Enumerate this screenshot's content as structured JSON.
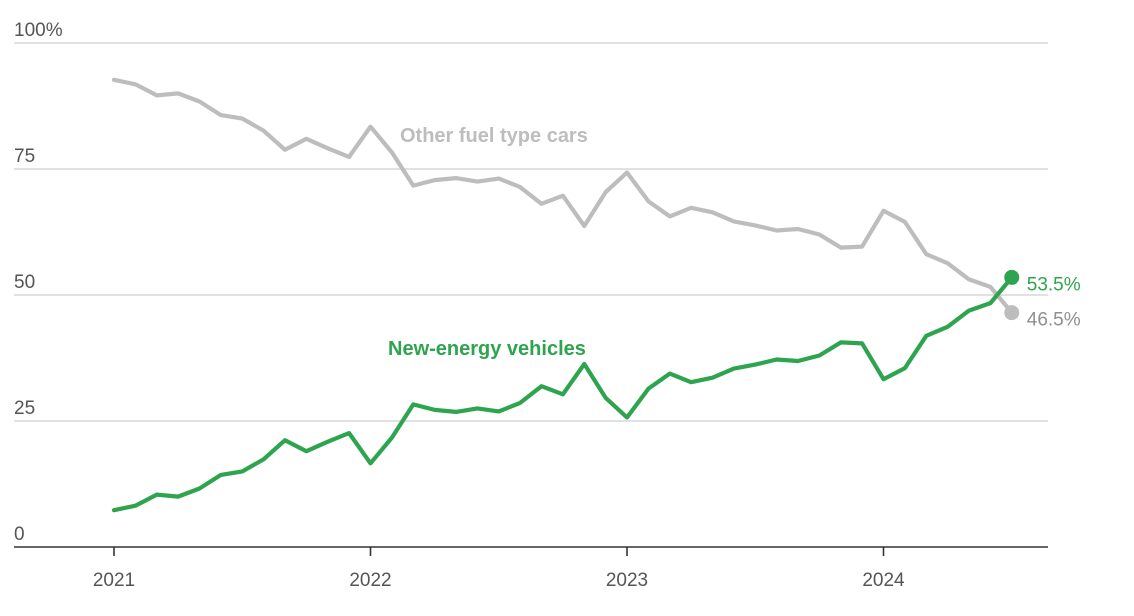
{
  "chart_data": {
    "type": "line",
    "y_unit_label": "100%",
    "yticks": [
      {
        "value": 100,
        "label": "100%"
      },
      {
        "value": 75,
        "label": "75"
      },
      {
        "value": 50,
        "label": "50"
      },
      {
        "value": 25,
        "label": "25"
      },
      {
        "value": 0,
        "label": "0"
      }
    ],
    "ylim": [
      0,
      100
    ],
    "xticks": [
      {
        "value": 0,
        "label": "2021"
      },
      {
        "value": 12,
        "label": "2022"
      },
      {
        "value": 24,
        "label": "2023"
      },
      {
        "value": 36,
        "label": "2024"
      }
    ],
    "x_start": "2021-01",
    "x_end": "2024-07",
    "grid": true,
    "series": [
      {
        "name": "New-energy vehicles",
        "color": "#2ea44f",
        "end_label": "53.5%",
        "values": [
          7.3,
          8.2,
          10.4,
          10.0,
          11.6,
          14.3,
          15.0,
          17.4,
          21.2,
          19.0,
          20.9,
          22.6,
          16.6,
          21.7,
          28.3,
          27.2,
          26.8,
          27.5,
          26.9,
          28.6,
          31.9,
          30.3,
          36.3,
          29.6,
          25.7,
          31.4,
          34.4,
          32.7,
          33.6,
          35.4,
          36.2,
          37.2,
          36.9,
          38.0,
          40.6,
          40.4,
          33.3,
          35.5,
          41.9,
          43.7,
          46.9,
          48.4,
          53.5
        ]
      },
      {
        "name": "Other fuel type cars",
        "color": "#bdbdbd",
        "end_label": "46.5%",
        "values": [
          92.7,
          91.8,
          89.6,
          90.0,
          88.4,
          85.7,
          85.0,
          82.6,
          78.8,
          81.0,
          79.1,
          77.4,
          83.4,
          78.3,
          71.7,
          72.8,
          73.2,
          72.5,
          73.1,
          71.4,
          68.1,
          69.7,
          63.7,
          70.4,
          74.3,
          68.6,
          65.6,
          67.3,
          66.4,
          64.6,
          63.8,
          62.8,
          63.1,
          62.0,
          59.4,
          59.6,
          66.7,
          64.5,
          58.1,
          56.3,
          53.1,
          51.6,
          46.5
        ]
      }
    ]
  }
}
